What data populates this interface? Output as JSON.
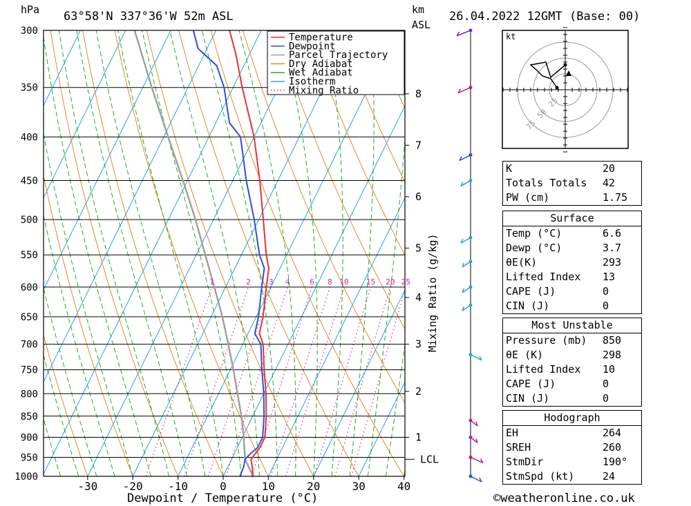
{
  "header": {
    "pressure_unit": "hPa",
    "location": "63°58'N  337°36'W  52m  ASL",
    "km_label": "km",
    "asl_label": "ASL",
    "datetime": "26.04.2022  12GMT  (Base: 00)"
  },
  "chart_data": {
    "type": "line",
    "subtype": "skew-T log-P sounding",
    "xlabel": "Dewpoint / Temperature (°C)",
    "ylabel": "hPa",
    "x_ticks": [
      -30,
      -20,
      -10,
      0,
      10,
      20,
      30,
      40
    ],
    "p_levels": [
      300,
      350,
      400,
      450,
      500,
      550,
      600,
      650,
      700,
      750,
      800,
      850,
      900,
      950,
      1000
    ],
    "xlim": [
      -40,
      40
    ],
    "ylim_hpa": [
      1000,
      300
    ],
    "km_ticks": [
      {
        "km": "1",
        "p": 900
      },
      {
        "km": "2",
        "p": 795
      },
      {
        "km": "3",
        "p": 700
      },
      {
        "km": "4",
        "p": 617
      },
      {
        "km": "5",
        "p": 540
      },
      {
        "km": "6",
        "p": 470
      },
      {
        "km": "7",
        "p": 409
      },
      {
        "km": "8",
        "p": 356
      }
    ],
    "lcl": {
      "label": "LCL",
      "p": 955
    },
    "mixing_ratio_axis_label": "Mixing Ratio (g/kg)",
    "mixing_ratio_labels": [
      "1",
      "2",
      "3",
      "4",
      "6",
      "8",
      "10",
      "15",
      "20",
      "25"
    ],
    "legend": {
      "placement": "top-right",
      "entries": [
        {
          "name": "Temperature",
          "color": "#e8312f"
        },
        {
          "name": "Dewpoint",
          "color": "#2b4ee0"
        },
        {
          "name": "Parcel Trajectory",
          "color": "#a0a0a0"
        },
        {
          "name": "Dry Adiabat",
          "color": "#e08a2a"
        },
        {
          "name": "Wet Adiabat",
          "color": "#1fae1f"
        },
        {
          "name": "Isotherm",
          "color": "#22a5dc"
        },
        {
          "name": "Mixing Ratio",
          "color": "#d0209a"
        }
      ]
    },
    "temperature": [
      {
        "p": 1000,
        "t": 6.6
      },
      {
        "p": 975,
        "t": 5.4
      },
      {
        "p": 955,
        "t": 4.3
      },
      {
        "p": 925,
        "t": 5.0
      },
      {
        "p": 900,
        "t": 5.0
      },
      {
        "p": 850,
        "t": 3.0
      },
      {
        "p": 800,
        "t": 0.5
      },
      {
        "p": 750,
        "t": -2.5
      },
      {
        "p": 700,
        "t": -5.5
      },
      {
        "p": 680,
        "t": -7.5
      },
      {
        "p": 650,
        "t": -8.5
      },
      {
        "p": 600,
        "t": -11.0
      },
      {
        "p": 570,
        "t": -12.5
      },
      {
        "p": 550,
        "t": -14.5
      },
      {
        "p": 500,
        "t": -19.0
      },
      {
        "p": 450,
        "t": -24.0
      },
      {
        "p": 400,
        "t": -30.0
      },
      {
        "p": 350,
        "t": -38.0
      },
      {
        "p": 320,
        "t": -43.0
      },
      {
        "p": 300,
        "t": -47.0
      }
    ],
    "dewpoint": [
      {
        "p": 1000,
        "t": 3.7
      },
      {
        "p": 975,
        "t": 3.5
      },
      {
        "p": 955,
        "t": 3.0
      },
      {
        "p": 940,
        "t": 3.6
      },
      {
        "p": 925,
        "t": 4.5
      },
      {
        "p": 900,
        "t": 4.5
      },
      {
        "p": 850,
        "t": 2.5
      },
      {
        "p": 800,
        "t": 0.0
      },
      {
        "p": 750,
        "t": -3.0
      },
      {
        "p": 700,
        "t": -6.0
      },
      {
        "p": 680,
        "t": -8.5
      },
      {
        "p": 650,
        "t": -9.5
      },
      {
        "p": 600,
        "t": -12.0
      },
      {
        "p": 570,
        "t": -13.5
      },
      {
        "p": 550,
        "t": -16.0
      },
      {
        "p": 500,
        "t": -21.0
      },
      {
        "p": 450,
        "t": -27.0
      },
      {
        "p": 400,
        "t": -33.0
      },
      {
        "p": 385,
        "t": -37.0
      },
      {
        "p": 350,
        "t": -42.0
      },
      {
        "p": 330,
        "t": -46.0
      },
      {
        "p": 315,
        "t": -52.0
      },
      {
        "p": 300,
        "t": -55.0
      }
    ],
    "parcel": [
      {
        "p": 1000,
        "t": 6.6
      },
      {
        "p": 955,
        "t": 3.0
      },
      {
        "p": 900,
        "t": 0.3
      },
      {
        "p": 850,
        "t": -2.5
      },
      {
        "p": 800,
        "t": -5.8
      },
      {
        "p": 750,
        "t": -9.3
      },
      {
        "p": 700,
        "t": -13.2
      },
      {
        "p": 650,
        "t": -17.5
      },
      {
        "p": 600,
        "t": -22.5
      },
      {
        "p": 550,
        "t": -28.0
      },
      {
        "p": 500,
        "t": -34.0
      },
      {
        "p": 450,
        "t": -41.0
      },
      {
        "p": 400,
        "t": -49.0
      },
      {
        "p": 350,
        "t": -58.0
      },
      {
        "p": 300,
        "t": -68.0
      }
    ]
  },
  "hodograph": {
    "unit": "kt",
    "ring_labels": [
      "25",
      "50",
      "75"
    ]
  },
  "indices": {
    "rows": [
      {
        "label": "K",
        "value": "20"
      },
      {
        "label": "Totals Totals",
        "value": "42"
      },
      {
        "label": "PW (cm)",
        "value": "1.75"
      }
    ]
  },
  "surface": {
    "title": "Surface",
    "rows": [
      {
        "label": "Temp (°C)",
        "value": "6.6"
      },
      {
        "label": "Dewp (°C)",
        "value": "3.7"
      },
      {
        "label": "θE(K)",
        "value": "293"
      },
      {
        "label": "Lifted Index",
        "value": "13"
      },
      {
        "label": "CAPE (J)",
        "value": "0"
      },
      {
        "label": "CIN (J)",
        "value": "0"
      }
    ]
  },
  "most_unstable": {
    "title": "Most Unstable",
    "rows": [
      {
        "label": "Pressure (mb)",
        "value": "850"
      },
      {
        "label": "θE (K)",
        "value": "298"
      },
      {
        "label": "Lifted Index",
        "value": "10"
      },
      {
        "label": "CAPE (J)",
        "value": "0"
      },
      {
        "label": "CIN (J)",
        "value": "0"
      }
    ]
  },
  "hodograph_stats": {
    "title": "Hodograph",
    "rows": [
      {
        "label": "EH",
        "value": "264"
      },
      {
        "label": "SREH",
        "value": "260"
      },
      {
        "label": "StmDir",
        "value": "190°"
      },
      {
        "label": "StmSpd (kt)",
        "value": "24"
      }
    ]
  },
  "footer": {
    "credit": "©weatheronline.co.uk"
  }
}
